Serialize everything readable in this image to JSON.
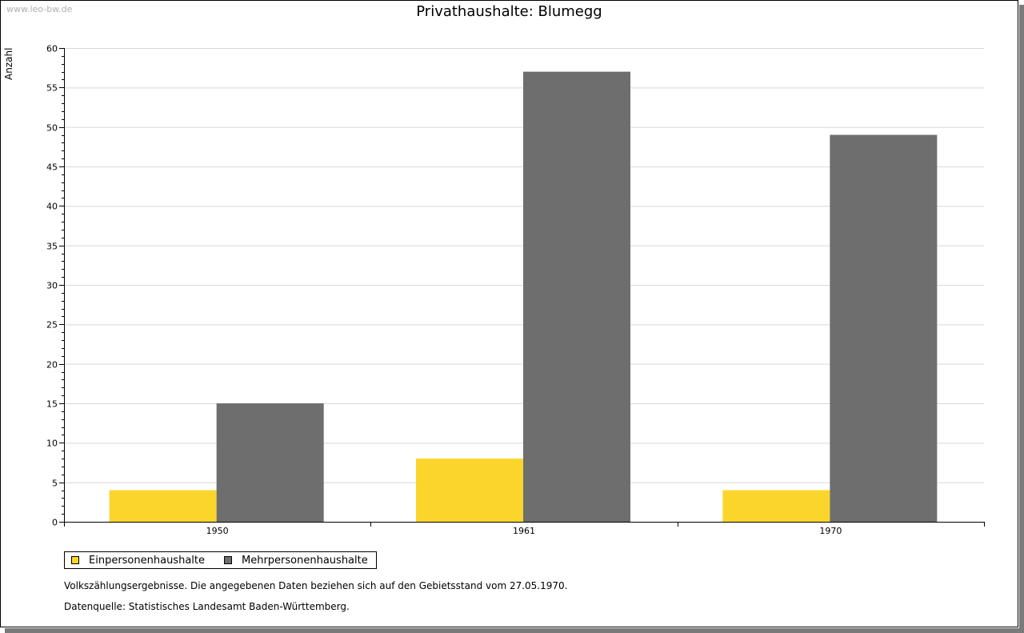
{
  "watermark": "www.leo-bw.de",
  "footnote": "Volkszählungsergebnisse. Die angegebenen Daten beziehen sich auf den Gebietsstand vom 27.05.1970.",
  "source": "Datenquelle: Statistisches Landesamt Baden-Württemberg.",
  "colors": {
    "series1": "#fcd52c",
    "series2": "#6e6e6e",
    "grid": "#d8d8d8"
  },
  "chart_data": {
    "type": "bar",
    "title": "Privathaushalte: Blumegg",
    "ylabel": "Anzahl",
    "xlabel": "",
    "categories": [
      "1950",
      "1961",
      "1970"
    ],
    "ylim": [
      0,
      60
    ],
    "yticks": [
      0,
      5,
      10,
      15,
      20,
      25,
      30,
      35,
      40,
      45,
      50,
      55,
      60
    ],
    "grid": true,
    "legend": "bottom-left",
    "series": [
      {
        "name": "Einpersonenhaushalte",
        "values": [
          4,
          8,
          4
        ]
      },
      {
        "name": "Mehrpersonenhaushalte",
        "values": [
          15,
          57,
          49
        ]
      }
    ]
  }
}
